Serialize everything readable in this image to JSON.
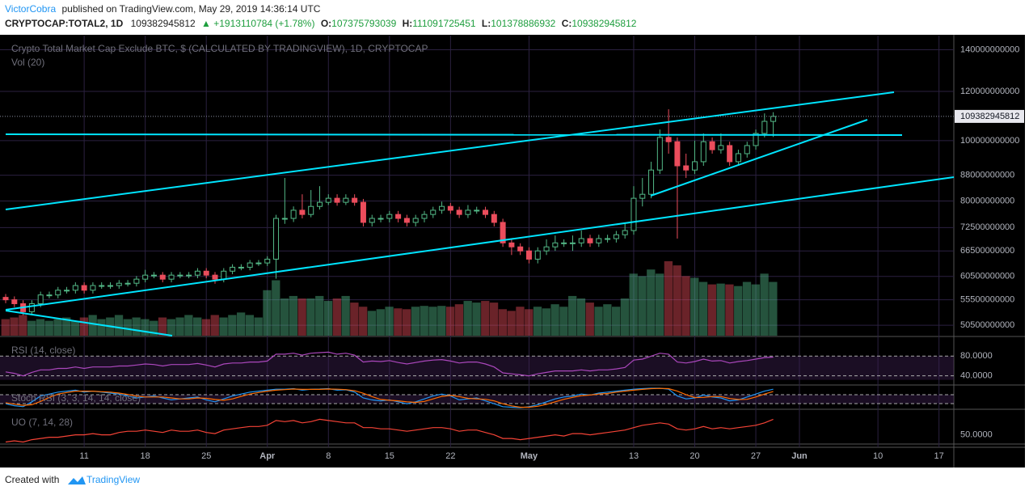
{
  "header": {
    "author": "VictorCobra",
    "published": "published on TradingView.com, May 29, 2019 14:36:14 UTC",
    "symbol": "CRYPTOCAP:TOTAL2, 1D",
    "last": "109382945812",
    "change": "▲ +1913110784 (+1.78%)",
    "o_label": "O:",
    "o": "107375793039",
    "h_label": "H:",
    "h": "111091725451",
    "l_label": "L:",
    "l": "101378886932",
    "c_label": "C:",
    "c": "109382945812"
  },
  "footer": {
    "created": "Created with",
    "brand": "TradingView"
  },
  "chart_data": {
    "type": "candlestick",
    "title": "Crypto Total Market Cap Exclude BTC, $ (CALCULATED BY TRADINGVIEW), 1D, CRYPTOCAP",
    "volume_title": "Vol (20)",
    "log_scale": true,
    "grid": true,
    "up_color": "#53b987",
    "down_color": "#eb4d5c",
    "last_price_label": "109382945812",
    "last_price": 109382945812,
    "ylim": [
      48600000000,
      147500000000
    ],
    "yticks": [
      140000000000,
      120000000000,
      100000000000,
      88000000000,
      80000000000,
      72500000000,
      66500000000,
      60500000000,
      55500000000,
      50500000000
    ],
    "xlim": [
      -0.65,
      108.7
    ],
    "xticks": [
      {
        "value": 9,
        "label": "11"
      },
      {
        "value": 16,
        "label": "18"
      },
      {
        "value": 23,
        "label": "25"
      },
      {
        "value": 30,
        "label": "Apr"
      },
      {
        "value": 37,
        "label": "8"
      },
      {
        "value": 44,
        "label": "15"
      },
      {
        "value": 51,
        "label": "22"
      },
      {
        "value": 60,
        "label": "May"
      },
      {
        "value": 72,
        "label": "13"
      },
      {
        "value": 79,
        "label": "20"
      },
      {
        "value": 86,
        "label": "27"
      },
      {
        "value": 91,
        "label": "Jun"
      },
      {
        "value": 100,
        "label": "10"
      },
      {
        "value": 107,
        "label": "17"
      }
    ],
    "open": [
      56000000000,
      55500000000,
      54700000000,
      53100000000,
      54700000000,
      56500000000,
      56500000000,
      57500000000,
      57500000000,
      58500000000,
      57500000000,
      58500000000,
      58500000000,
      58500000000,
      59000000000,
      59000000000,
      59900000000,
      60800000000,
      60800000000,
      59900000000,
      60800000000,
      60800000000,
      60800000000,
      61700000000,
      60800000000,
      59900000000,
      61700000000,
      62600000000,
      62600000000,
      63600000000,
      63600000000,
      64500000000,
      75000000000,
      75000000000,
      77300000000,
      76100000000,
      78400000000,
      79600000000,
      80800000000,
      79600000000,
      80800000000,
      79600000000,
      73900000000,
      75000000000,
      75000000000,
      76100000000,
      75000000000,
      73900000000,
      75000000000,
      76100000000,
      77300000000,
      78400000000,
      77300000000,
      76100000000,
      77300000000,
      77300000000,
      76100000000,
      73900000000,
      68500000000,
      67500000000,
      66500000000,
      64500000000,
      66500000000,
      67500000000,
      68500000000,
      68500000000,
      68500000000,
      69600000000,
      68500000000,
      69600000000,
      69600000000,
      70600000000,
      71700000000,
      80800000000,
      82000000000,
      89700000000,
      101200000000,
      99600000000,
      91100000000,
      89700000000,
      92500000000,
      99600000000,
      96700000000,
      98200000000,
      92500000000,
      95300000000,
      98200000000,
      102700000000,
      107375793039
    ],
    "high": [
      56700000000,
      56200000000,
      55400000000,
      55400000000,
      57200000000,
      57200000000,
      58200000000,
      58200000000,
      59200000000,
      59200000000,
      59200000000,
      59200000000,
      59200000000,
      59700000000,
      59700000000,
      60600000000,
      62000000000,
      61500000000,
      61500000000,
      61500000000,
      61500000000,
      61500000000,
      62400000000,
      62400000000,
      61500000000,
      62400000000,
      63300000000,
      63300000000,
      64300000000,
      64300000000,
      65200000000,
      76000000000,
      87100000000,
      78400000000,
      82000000000,
      83300000000,
      84500000000,
      82000000000,
      82000000000,
      82000000000,
      82000000000,
      80600000000,
      76000000000,
      76000000000,
      77100000000,
      77100000000,
      76000000000,
      76000000000,
      77100000000,
      78300000000,
      79800000000,
      79400000000,
      78300000000,
      78800000000,
      78300000000,
      78300000000,
      77100000000,
      74900000000,
      69400000000,
      68400000000,
      67400000000,
      67400000000,
      69400000000,
      70400000000,
      69400000000,
      70400000000,
      71700000000,
      70600000000,
      70600000000,
      70600000000,
      71600000000,
      73900000000,
      84500000000,
      87100000000,
      92500000000,
      104200000000,
      112300000000,
      101200000000,
      95300000000,
      100000000000,
      102700000000,
      101200000000,
      102700000000,
      99600000000,
      96700000000,
      99600000000,
      104200000000,
      110600000000,
      111091725451
    ],
    "low": [
      54800000000,
      54000000000,
      52400000000,
      52400000000,
      54000000000,
      55800000000,
      55800000000,
      56800000000,
      56800000000,
      56800000000,
      56800000000,
      57800000000,
      57800000000,
      57800000000,
      58300000000,
      58300000000,
      59200000000,
      60100000000,
      59200000000,
      59200000000,
      60100000000,
      60100000000,
      60100000000,
      60100000000,
      58900000000,
      59200000000,
      61000000000,
      61900000000,
      61900000000,
      62900000000,
      62900000000,
      60000000000,
      73500000000,
      74000000000,
      75000000000,
      75300000000,
      77500000000,
      78800000000,
      78600000000,
      78800000000,
      78600000000,
      72800000000,
      72800000000,
      73900000000,
      73900000000,
      73900000000,
      72800000000,
      72800000000,
      73900000000,
      75100000000,
      76300000000,
      76300000000,
      75100000000,
      75100000000,
      76300000000,
      75100000000,
      72800000000,
      67500000000,
      65500000000,
      65500000000,
      63500000000,
      63500000000,
      65500000000,
      66500000000,
      67500000000,
      66500000000,
      67500000000,
      67500000000,
      67500000000,
      68600000000,
      68600000000,
      69600000000,
      70600000000,
      78400000000,
      80800000000,
      88400000000,
      95300000000,
      69600000000,
      87100000000,
      88400000000,
      91100000000,
      95300000000,
      95300000000,
      91100000000,
      91100000000,
      93900000000,
      96700000000,
      101200000000,
      101378886932
    ],
    "close": [
      55500000000,
      54700000000,
      53100000000,
      54700000000,
      56500000000,
      56500000000,
      57500000000,
      57500000000,
      58500000000,
      57500000000,
      58500000000,
      58500000000,
      58500000000,
      59000000000,
      59000000000,
      59900000000,
      60800000000,
      60800000000,
      59900000000,
      60800000000,
      60800000000,
      60800000000,
      61700000000,
      60800000000,
      59900000000,
      61700000000,
      62600000000,
      62600000000,
      63600000000,
      63600000000,
      64500000000,
      75000000000,
      75000000000,
      77300000000,
      76100000000,
      78400000000,
      79600000000,
      80800000000,
      79600000000,
      80800000000,
      79600000000,
      73900000000,
      75000000000,
      75000000000,
      76100000000,
      75000000000,
      73900000000,
      75000000000,
      76100000000,
      77300000000,
      78400000000,
      77300000000,
      76100000000,
      77300000000,
      77300000000,
      76100000000,
      73900000000,
      68500000000,
      67500000000,
      66500000000,
      64500000000,
      66500000000,
      67500000000,
      68500000000,
      68500000000,
      68500000000,
      69600000000,
      68500000000,
      69600000000,
      69600000000,
      70600000000,
      71700000000,
      80800000000,
      82000000000,
      89700000000,
      101200000000,
      99600000000,
      91100000000,
      89700000000,
      92500000000,
      99600000000,
      96700000000,
      98200000000,
      92500000000,
      95300000000,
      98200000000,
      102700000000,
      107400000000,
      109382945812
    ],
    "volume": [
      20,
      22,
      25,
      18,
      20,
      18,
      20,
      22,
      18,
      22,
      25,
      20,
      22,
      25,
      20,
      22,
      20,
      18,
      22,
      20,
      22,
      25,
      22,
      20,
      25,
      22,
      25,
      28,
      25,
      22,
      55,
      67,
      45,
      48,
      45,
      45,
      48,
      42,
      45,
      48,
      40,
      35,
      30,
      32,
      35,
      33,
      32,
      35,
      36,
      35,
      36,
      35,
      38,
      42,
      40,
      42,
      40,
      32,
      30,
      35,
      32,
      35,
      33,
      38,
      35,
      48,
      45,
      40,
      35,
      38,
      35,
      45,
      75,
      72,
      80,
      75,
      90,
      85,
      72,
      70,
      65,
      62,
      63,
      62,
      60,
      65,
      62,
      75,
      65
    ],
    "rsi": {
      "title": "RSI (14, close)",
      "color": "#ab47bc",
      "ylim": [
        23,
        115
      ],
      "yticks": [
        {
          "value": 80,
          "label": "80.0000"
        },
        {
          "value": 40,
          "label": "40.0000"
        }
      ],
      "values": [
        48,
        45,
        40,
        47,
        52,
        52,
        55,
        55,
        58,
        55,
        58,
        58,
        58,
        60,
        60,
        62,
        64,
        63,
        60,
        63,
        63,
        63,
        65,
        62,
        58,
        64,
        66,
        66,
        68,
        68,
        70,
        84,
        84,
        86,
        82,
        86,
        87,
        88,
        84,
        86,
        82,
        68,
        70,
        69,
        71,
        67,
        64,
        67,
        70,
        72,
        73,
        70,
        66,
        68,
        68,
        64,
        58,
        46,
        44,
        42,
        40,
        44,
        47,
        50,
        50,
        50,
        52,
        50,
        52,
        52,
        54,
        57,
        72,
        74,
        80,
        86,
        84,
        68,
        66,
        69,
        74,
        70,
        71,
        66,
        69,
        71,
        74,
        77,
        78
      ]
    },
    "stoch": {
      "title": "Stoch RSI (3, 3, 14, 14, close)",
      "ylim": [
        0,
        100
      ],
      "series": [
        {
          "color": "#2196f3",
          "values": [
            20,
            10,
            5,
            30,
            60,
            70,
            80,
            85,
            90,
            80,
            85,
            80,
            75,
            70,
            60,
            50,
            55,
            60,
            50,
            40,
            45,
            50,
            55,
            40,
            30,
            45,
            60,
            70,
            80,
            85,
            90,
            95,
            95,
            98,
            90,
            95,
            96,
            98,
            90,
            92,
            80,
            50,
            40,
            35,
            40,
            30,
            20,
            30,
            45,
            60,
            70,
            60,
            40,
            45,
            50,
            35,
            20,
            5,
            2,
            0,
            5,
            15,
            30,
            45,
            55,
            60,
            70,
            65,
            75,
            80,
            85,
            90,
            95,
            98,
            100,
            100,
            95,
            60,
            45,
            50,
            65,
            55,
            50,
            35,
            40,
            55,
            70,
            85,
            95
          ]
        },
        {
          "color": "#ff6d00",
          "values": [
            25,
            18,
            12,
            15,
            32,
            53,
            70,
            78,
            85,
            85,
            85,
            82,
            80,
            75,
            68,
            60,
            55,
            55,
            55,
            50,
            45,
            45,
            50,
            48,
            42,
            38,
            45,
            58,
            70,
            78,
            85,
            90,
            93,
            96,
            94,
            94,
            94,
            96,
            95,
            93,
            87,
            74,
            57,
            42,
            38,
            35,
            30,
            27,
            32,
            45,
            58,
            63,
            57,
            48,
            45,
            43,
            35,
            20,
            9,
            2,
            2,
            7,
            17,
            30,
            43,
            53,
            62,
            65,
            70,
            73,
            80,
            85,
            90,
            94,
            98,
            99,
            98,
            85,
            67,
            52,
            53,
            57,
            57,
            47,
            42,
            43,
            55,
            70,
            83
          ]
        }
      ]
    },
    "uo": {
      "title": "UO (7, 14, 28)",
      "color": "#f44336",
      "ylim": [
        43,
        70
      ],
      "yticks": [
        {
          "value": 50,
          "label": "50.0000"
        }
      ],
      "values": [
        44,
        45,
        44,
        46,
        47,
        48,
        48,
        49,
        50,
        50,
        51,
        50,
        50,
        52,
        53,
        53,
        54,
        53,
        52,
        54,
        53,
        53,
        54,
        52,
        51,
        54,
        55,
        56,
        57,
        57,
        58,
        62,
        61,
        62,
        60,
        61,
        63,
        62,
        61,
        60,
        60,
        56,
        56,
        55,
        55,
        54,
        53,
        54,
        55,
        56,
        56,
        55,
        53,
        54,
        54,
        52,
        50,
        47,
        47,
        46,
        47,
        48,
        49,
        50,
        49,
        51,
        51,
        50,
        51,
        52,
        53,
        54,
        56,
        58,
        59,
        60,
        59,
        55,
        54,
        55,
        57,
        55,
        56,
        55,
        56,
        57,
        58,
        60,
        63
      ]
    }
  }
}
